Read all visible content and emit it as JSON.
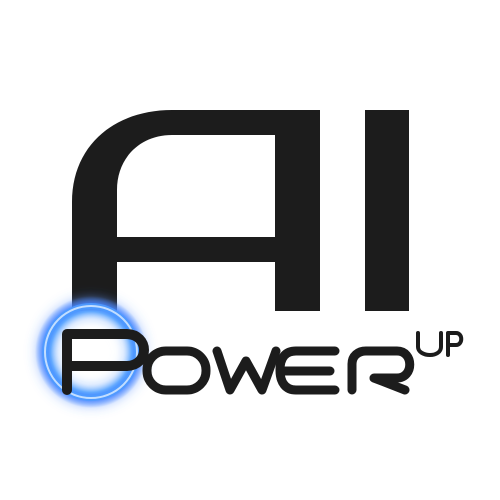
{
  "logo": {
    "main_text": "AI",
    "word_text": "Power",
    "superscript_text": "UP",
    "colors": {
      "ink": "#1c1c1c",
      "glow": "#5ea7ff",
      "glow_core": "#2f78ff",
      "background": "#ffffff"
    }
  }
}
